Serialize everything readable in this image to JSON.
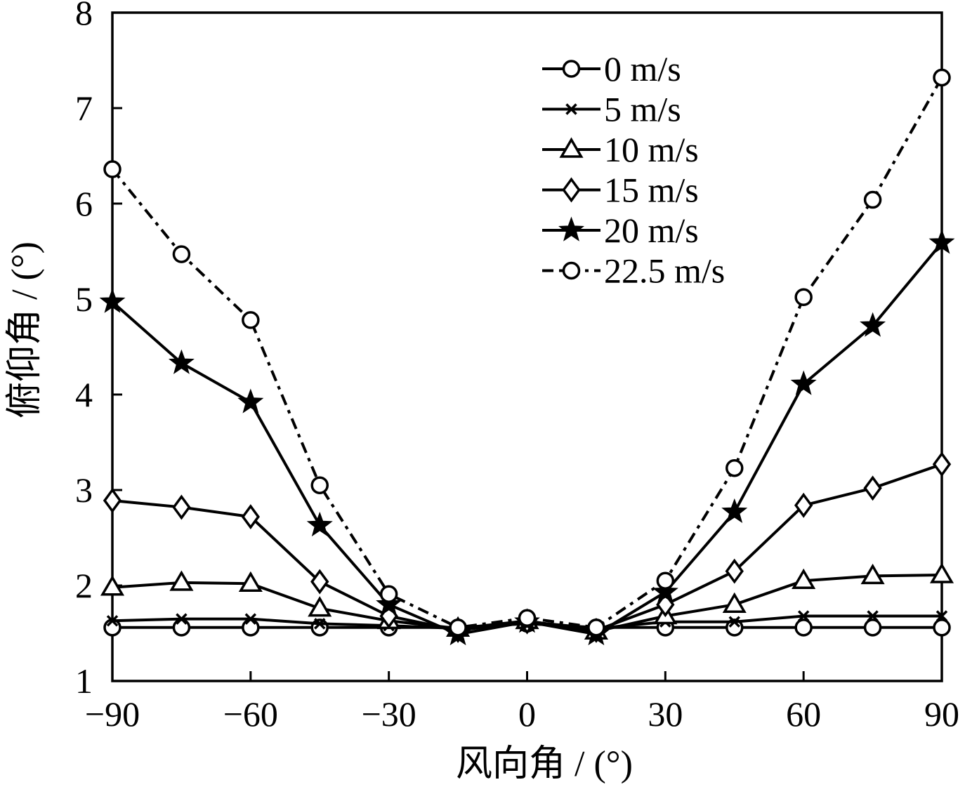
{
  "chart_data": {
    "type": "line",
    "xlabel": "风向角 / (°)",
    "ylabel": "俯仰角 / (°)",
    "xlim": [
      -90,
      90
    ],
    "ylim": [
      1,
      8
    ],
    "xticks": [
      -90,
      -60,
      -30,
      0,
      30,
      60,
      90
    ],
    "xtick_labels": [
      "−90",
      "−60",
      "−30",
      "0",
      "30",
      "60",
      "90"
    ],
    "yticks": [
      1,
      2,
      3,
      4,
      5,
      6,
      7,
      8
    ],
    "ytick_labels": [
      "1",
      "2",
      "3",
      "4",
      "5",
      "6",
      "7",
      "8"
    ],
    "grid": false,
    "legend_position": "top-center",
    "x": [
      -90,
      -75,
      -60,
      -45,
      -30,
      -15,
      0,
      15,
      30,
      45,
      60,
      75,
      90
    ],
    "series": [
      {
        "name": "0 m/s",
        "marker": "circle",
        "line": "solid",
        "color": "#000000",
        "values": [
          1.56,
          1.56,
          1.56,
          1.56,
          1.56,
          1.56,
          1.6,
          1.56,
          1.56,
          1.56,
          1.56,
          1.56,
          1.56
        ]
      },
      {
        "name": "5 m/s",
        "marker": "x",
        "line": "solid",
        "color": "#000000",
        "values": [
          1.63,
          1.65,
          1.65,
          1.6,
          1.58,
          1.55,
          1.62,
          1.55,
          1.62,
          1.62,
          1.68,
          1.68,
          1.68
        ]
      },
      {
        "name": "10 m/s",
        "marker": "triangle",
        "line": "solid",
        "color": "#000000",
        "values": [
          1.98,
          2.03,
          2.02,
          1.76,
          1.63,
          1.55,
          1.63,
          1.52,
          1.68,
          1.8,
          2.05,
          2.1,
          2.11
        ]
      },
      {
        "name": "15 m/s",
        "marker": "diamond",
        "line": "solid",
        "color": "#000000",
        "values": [
          2.89,
          2.82,
          2.72,
          2.04,
          1.68,
          1.53,
          1.62,
          1.53,
          1.8,
          2.15,
          2.84,
          3.02,
          3.27
        ]
      },
      {
        "name": "20 m/s",
        "marker": "star",
        "line": "solid",
        "color": "#000000",
        "values": [
          4.97,
          4.33,
          3.92,
          2.63,
          1.8,
          1.49,
          1.62,
          1.49,
          1.93,
          2.77,
          4.11,
          4.72,
          5.59
        ]
      },
      {
        "name": "22.5 m/s",
        "marker": "circle",
        "line": "dashdot",
        "color": "#000000",
        "values": [
          6.36,
          5.47,
          4.78,
          3.05,
          1.91,
          1.56,
          1.66,
          1.56,
          2.05,
          3.23,
          5.02,
          6.04,
          7.32
        ]
      }
    ]
  }
}
